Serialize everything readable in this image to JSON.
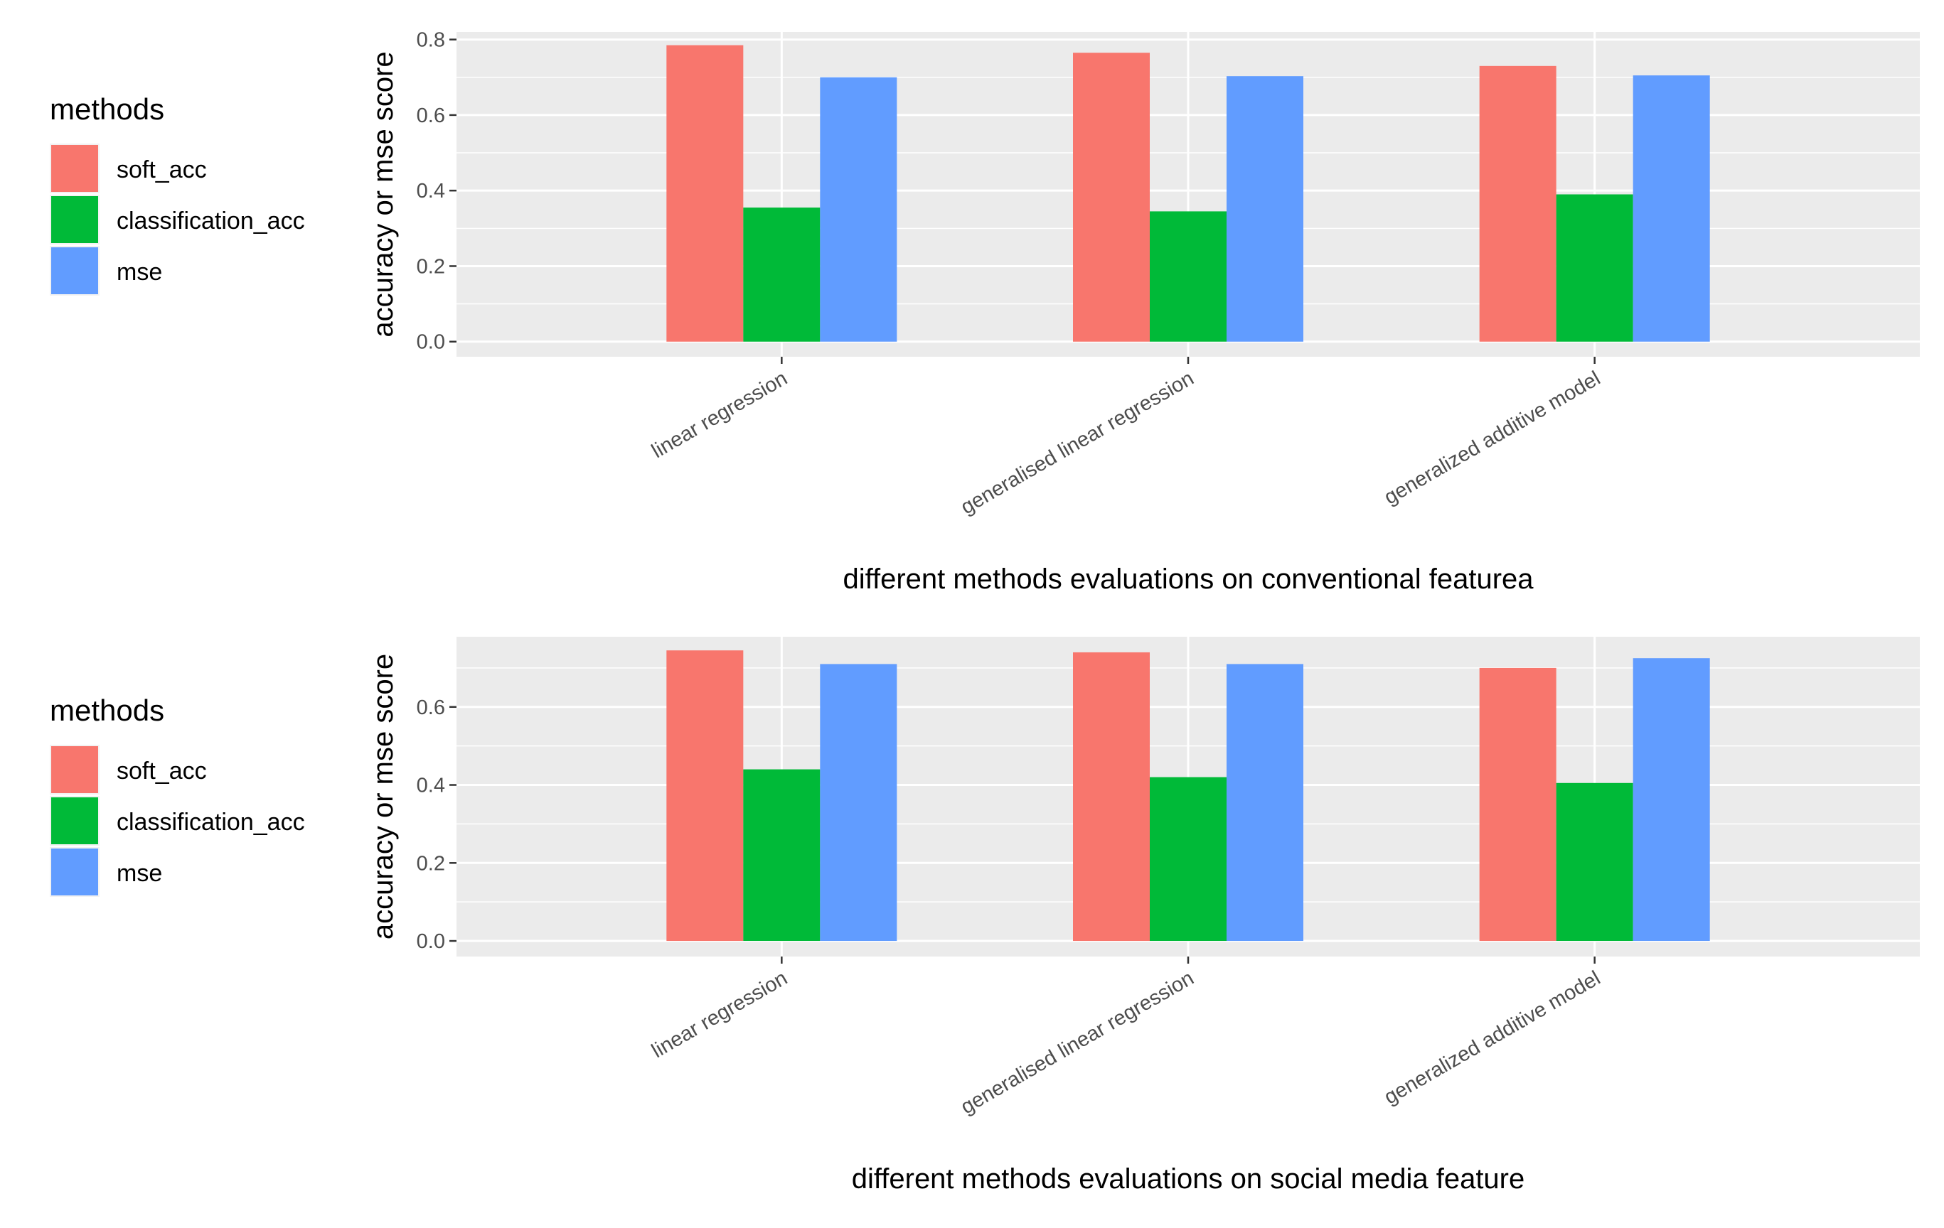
{
  "chart_data": [
    {
      "type": "bar",
      "title": "",
      "xlabel": "different methods evaluations on conventional featurea",
      "ylabel": "accuracy or mse score",
      "categories": [
        "linear regression",
        "generalised linear regression",
        "generalized additive model"
      ],
      "series": [
        {
          "name": "soft_acc",
          "color": "#F8766D",
          "values": [
            0.785,
            0.765,
            0.73
          ]
        },
        {
          "name": "classification_acc",
          "color": "#00BA38",
          "values": [
            0.355,
            0.345,
            0.39
          ]
        },
        {
          "name": "mse",
          "color": "#619CFF",
          "values": [
            0.7,
            0.703,
            0.705
          ]
        }
      ],
      "ylim": [
        -0.04,
        0.82
      ],
      "yticks": [
        0.0,
        0.2,
        0.4,
        0.6,
        0.8
      ],
      "ytick_labels": [
        "0.0",
        "0.2",
        "0.4",
        "0.6",
        "0.8"
      ],
      "grid": true,
      "legend": {
        "title": "methods",
        "position": "left"
      }
    },
    {
      "type": "bar",
      "title": "",
      "xlabel": "different methods evaluations on social media feature",
      "ylabel": "accuracy or mse score",
      "categories": [
        "linear regression",
        "generalised linear regression",
        "generalized additive model"
      ],
      "series": [
        {
          "name": "soft_acc",
          "color": "#F8766D",
          "values": [
            0.745,
            0.74,
            0.7
          ]
        },
        {
          "name": "classification_acc",
          "color": "#00BA38",
          "values": [
            0.44,
            0.42,
            0.405
          ]
        },
        {
          "name": "mse",
          "color": "#619CFF",
          "values": [
            0.71,
            0.71,
            0.725
          ]
        }
      ],
      "ylim": [
        -0.04,
        0.78
      ],
      "yticks": [
        0.0,
        0.2,
        0.4,
        0.6
      ],
      "ytick_labels": [
        "0.0",
        "0.2",
        "0.4",
        "0.6"
      ],
      "grid": true,
      "legend": {
        "title": "methods",
        "position": "left"
      }
    }
  ]
}
